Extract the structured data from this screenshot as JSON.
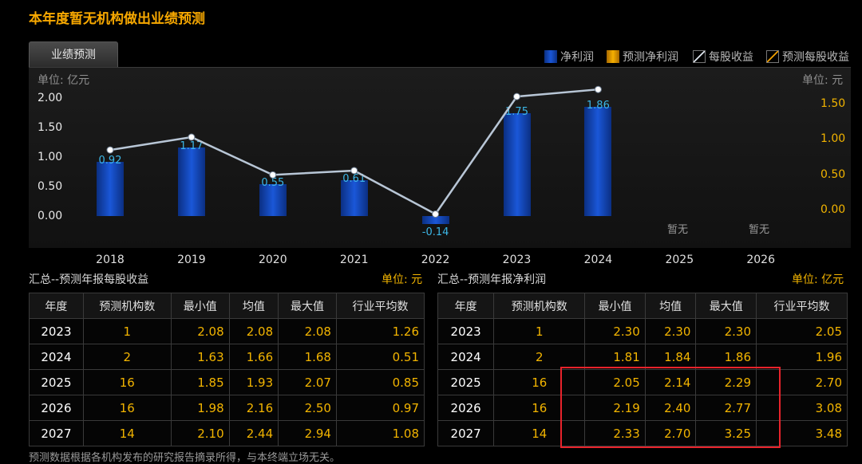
{
  "page_title": "本年度暂无机构做出业绩预测",
  "tab_label": "业绩预测",
  "legend": {
    "items": [
      {
        "label": "净利润",
        "color": "#1446c0",
        "icon": "bar-swatch-blue"
      },
      {
        "label": "预测净利润",
        "color": "#f2a000",
        "icon": "bar-swatch-orange"
      },
      {
        "label": "每股收益",
        "color": "#cfd8e3",
        "icon": "line-swatch-white"
      },
      {
        "label": "预测每股收益",
        "color": "#f2a000",
        "icon": "line-swatch-orange"
      }
    ]
  },
  "chart": {
    "unit_left": "单位: 亿元",
    "unit_right": "单位: 元",
    "no_data_label": "暂无"
  },
  "chart_data": {
    "type": "bar",
    "categories": [
      "2018",
      "2019",
      "2020",
      "2021",
      "2022",
      "2023",
      "2024",
      "2025",
      "2026"
    ],
    "series": [
      {
        "name": "净利润",
        "values": [
          0.92,
          1.17,
          0.55,
          0.61,
          -0.14,
          1.75,
          1.86,
          null,
          null
        ]
      },
      {
        "name": "每股收益",
        "values": [
          0.85,
          1.03,
          0.5,
          0.56,
          -0.05,
          1.6,
          1.7,
          null,
          null
        ]
      }
    ],
    "bar_labels": [
      "0.92",
      "1.17",
      "0.55",
      "0.61",
      "-0.14",
      "1.75",
      "1.86"
    ],
    "no_data_categories": [
      "2025",
      "2026"
    ],
    "y_left_ticks": [
      "2.00",
      "1.50",
      "1.00",
      "0.50",
      "0.00"
    ],
    "y_right_ticks": [
      "1.50",
      "1.00",
      "0.50",
      "0.00"
    ],
    "ylim_left": [
      -0.5,
      2.0
    ],
    "ylim_right": [
      -0.3,
      1.6
    ]
  },
  "eps_section": {
    "title": "汇总--预测年报每股收益",
    "unit": "单位: 元",
    "headers": [
      "年度",
      "预测机构数",
      "最小值",
      "均值",
      "最大值",
      "行业平均数"
    ],
    "rows": [
      [
        "2023",
        "1",
        "2.08",
        "2.08",
        "2.08",
        "1.26"
      ],
      [
        "2024",
        "2",
        "1.63",
        "1.66",
        "1.68",
        "0.51"
      ],
      [
        "2025",
        "16",
        "1.85",
        "1.93",
        "2.07",
        "0.85"
      ],
      [
        "2026",
        "16",
        "1.98",
        "2.16",
        "2.50",
        "0.97"
      ],
      [
        "2027",
        "14",
        "2.10",
        "2.44",
        "2.94",
        "1.08"
      ]
    ]
  },
  "profit_section": {
    "title": "汇总--预测年报净利润",
    "unit": "单位: 亿元",
    "headers": [
      "年度",
      "预测机构数",
      "最小值",
      "均值",
      "最大值",
      "行业平均数"
    ],
    "rows": [
      [
        "2023",
        "1",
        "2.30",
        "2.30",
        "2.30",
        "2.05"
      ],
      [
        "2024",
        "2",
        "1.81",
        "1.84",
        "1.86",
        "1.96"
      ],
      [
        "2025",
        "16",
        "2.05",
        "2.14",
        "2.29",
        "2.70"
      ],
      [
        "2026",
        "16",
        "2.19",
        "2.40",
        "2.77",
        "3.08"
      ],
      [
        "2027",
        "14",
        "2.33",
        "2.70",
        "3.25",
        "3.48"
      ]
    ]
  },
  "footnote": "预测数据根据各机构发布的研究报告摘录所得，与本终端立场无关。"
}
